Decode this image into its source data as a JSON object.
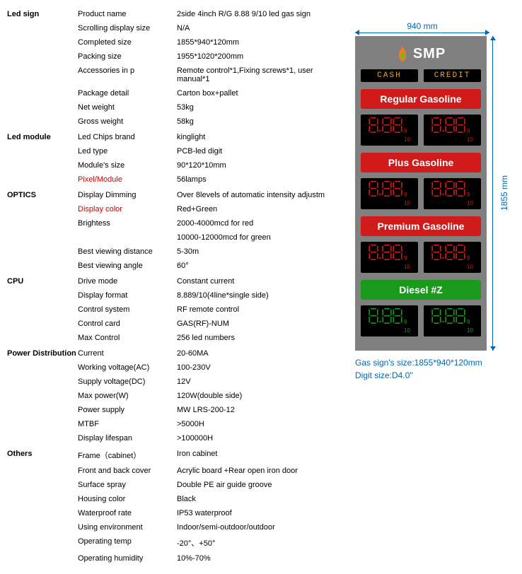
{
  "sections": {
    "led_sign": {
      "header": "Led sign",
      "rows": [
        {
          "label": "Product name",
          "value": "2side 4inch R/G 8.88 9/10 led gas sign"
        },
        {
          "label": "Scrolling display size",
          "value": "N/A"
        },
        {
          "label": "Completed size",
          "value": "1855*940*120mm"
        },
        {
          "label": "Packing size",
          "value": "1955*1020*200mm"
        },
        {
          "label": "Accessories in p",
          "value": "Remote control*1,Fixing screws*1, user manual*1"
        },
        {
          "label": "Package detail",
          "value": "Carton box+pallet"
        },
        {
          "label": "Net weight",
          "value": "53kg"
        },
        {
          "label": "Gross weight",
          "value": "58kg"
        }
      ]
    },
    "led_module": {
      "header": "Led module",
      "rows": [
        {
          "label": "Led Chips brand",
          "value": "kinglight"
        },
        {
          "label": "Led type",
          "value": "PCB-led digit"
        },
        {
          "label": "Module's size",
          "value": "90*120*10mm"
        },
        {
          "label": "Pixel/Module",
          "value": "56lamps",
          "label_red": true
        }
      ]
    },
    "optics": {
      "header": "OPTICS",
      "rows": [
        {
          "label": "Display Dimming",
          "value": "Over 8levels of automatic intensity adjustm"
        },
        {
          "label": "Display color",
          "value": "Red+Green",
          "label_red": true
        },
        {
          "label": "Brightess",
          "value": "2000-4000mcd for red"
        },
        {
          "label": "",
          "value": "10000-12000mcd for green"
        },
        {
          "label": "Best viewing distance",
          "value": "5-30m"
        },
        {
          "label": "Best viewing angle",
          "value": "60°"
        }
      ]
    },
    "cpu": {
      "header": "CPU",
      "rows": [
        {
          "label": "Drive mode",
          "value": "Constant current"
        },
        {
          "label": "Display format",
          "value": "8.889/10(4line*single side)"
        },
        {
          "label": "Control system",
          "value": "RF remote control"
        },
        {
          "label": "Control card",
          "value": "GAS(RF)-NUM"
        },
        {
          "label": "Max Control",
          "value": "256 led numbers"
        }
      ]
    },
    "power": {
      "header": "Power Distribution",
      "rows": [
        {
          "label": "Current",
          "value": "20-60MA"
        },
        {
          "label": "Working voltage(AC)",
          "value": "100-230V"
        },
        {
          "label": "Supply voltage(DC)",
          "value": "12V"
        },
        {
          "label": "Max power(W)",
          "value": "120W(double side)"
        },
        {
          "label": "Power supply",
          "value": "MW LRS-200-12"
        },
        {
          "label": "MTBF",
          "value": ">5000H"
        },
        {
          "label": "Display lifespan",
          "value": ">100000H"
        }
      ]
    },
    "others": {
      "header": "Others",
      "rows": [
        {
          "label": "Frame（cabinet）",
          "value": "Iron cabinet"
        },
        {
          "label": "Front and back cover",
          "value": "Acrylic board +Rear open iron door"
        },
        {
          "label": "Surface spray",
          "value": "Double PE air guide groove"
        },
        {
          "label": "Housing color",
          "value": "Black"
        },
        {
          "label": "Waterproof rate",
          "value": "IP53 waterproof"
        },
        {
          "label": "Using environment",
          "value": "Indoor/semi-outdoor/outdoor"
        },
        {
          "label": "Operating temp",
          "value": "-20°、+50°"
        },
        {
          "label": "Operating humidity",
          "value": "10%-70%"
        }
      ]
    }
  },
  "diagram": {
    "width_label": "940 mm",
    "height_label": "1855 mm",
    "brand": "SMP",
    "cash": "CASH",
    "credit": "CREDIT",
    "fuels": [
      {
        "name": "Regular Gasoline",
        "color": "red",
        "led": "red"
      },
      {
        "name": "Plus Gasoline",
        "color": "red",
        "led": "red"
      },
      {
        "name": "Premium Gasoline",
        "color": "red",
        "led": "red"
      },
      {
        "name": "Diesel #Z",
        "color": "green",
        "led": "green"
      }
    ],
    "frac_top": "9",
    "frac_bot": "10",
    "caption1": "Gas sign's size:1855*940*120mm",
    "caption2": "Digit size:D4.0''",
    "colors": {
      "sign_bg": "#808080",
      "red": "#d11a1a",
      "green": "#1a9a1a",
      "dim_blue": "#0066b3",
      "amber": "#e6a835"
    }
  }
}
